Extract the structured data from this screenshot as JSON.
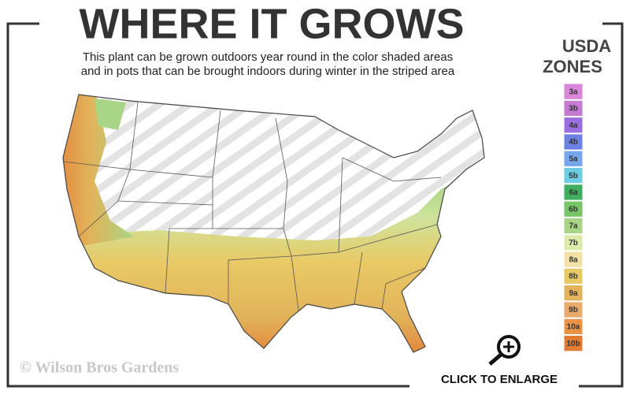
{
  "title": "WHERE IT GROWS",
  "subtitle": [
    "This plant can be grown outdoors year round in the color shaded areas",
    "and in pots that can be brought indoors during winter in the striped area"
  ],
  "legend": {
    "title": [
      "USDA",
      "ZONES"
    ],
    "zones": [
      {
        "label": "3a",
        "color": "#d986d9"
      },
      {
        "label": "3b",
        "color": "#c57bd4"
      },
      {
        "label": "4a",
        "color": "#9a6ee0"
      },
      {
        "label": "4b",
        "color": "#6d80e3"
      },
      {
        "label": "5a",
        "color": "#78a6ec"
      },
      {
        "label": "5b",
        "color": "#6ccde3"
      },
      {
        "label": "6a",
        "color": "#3fae5e"
      },
      {
        "label": "6b",
        "color": "#78c566"
      },
      {
        "label": "7a",
        "color": "#a9d586"
      },
      {
        "label": "7b",
        "color": "#dcebaa"
      },
      {
        "label": "8a",
        "color": "#f1e1a6"
      },
      {
        "label": "8b",
        "color": "#e9c965"
      },
      {
        "label": "9a",
        "color": "#e2b35a"
      },
      {
        "label": "9b",
        "color": "#eaaa6a"
      },
      {
        "label": "10a",
        "color": "#ea9345"
      },
      {
        "label": "10b",
        "color": "#e27c33"
      }
    ]
  },
  "copyright": "© Wilson Bros Gardens",
  "button": "CLICK TO ENLARGE"
}
